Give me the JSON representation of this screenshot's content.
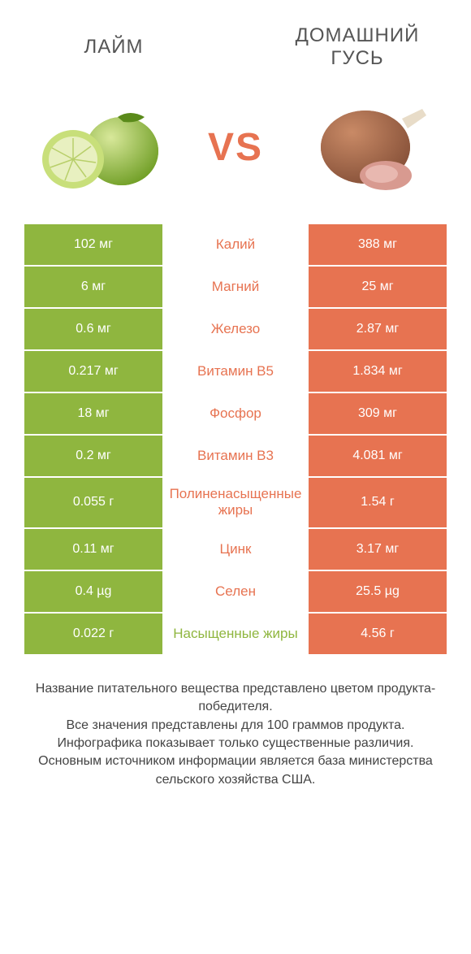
{
  "header": {
    "left_title": "ЛАЙМ",
    "right_title": "ДОМАШНИЙ ГУСЬ",
    "vs_label": "VS"
  },
  "colors": {
    "left_bg": "#8fb63f",
    "right_bg": "#e77351",
    "mid_green": "#8fb63f",
    "mid_orange": "#e77351",
    "vs_color": "#e77351",
    "row_border": "#ffffff",
    "footer_text": "#444444"
  },
  "table": {
    "rows": [
      {
        "left": "102 мг",
        "name": "Калий",
        "right": "388 мг",
        "winner": "right"
      },
      {
        "left": "6 мг",
        "name": "Магний",
        "right": "25 мг",
        "winner": "right"
      },
      {
        "left": "0.6 мг",
        "name": "Железо",
        "right": "2.87 мг",
        "winner": "right"
      },
      {
        "left": "0.217 мг",
        "name": "Витамин B5",
        "right": "1.834 мг",
        "winner": "right"
      },
      {
        "left": "18 мг",
        "name": "Фосфор",
        "right": "309 мг",
        "winner": "right"
      },
      {
        "left": "0.2 мг",
        "name": "Витамин B3",
        "right": "4.081 мг",
        "winner": "right"
      },
      {
        "left": "0.055 г",
        "name": "Полиненасыщенные жиры",
        "right": "1.54 г",
        "winner": "right"
      },
      {
        "left": "0.11 мг",
        "name": "Цинк",
        "right": "3.17 мг",
        "winner": "right"
      },
      {
        "left": "0.4 µg",
        "name": "Селен",
        "right": "25.5 µg",
        "winner": "right"
      },
      {
        "left": "0.022 г",
        "name": "Насыщенные жиры",
        "right": "4.56 г",
        "winner": "left"
      }
    ]
  },
  "footer": {
    "lines": [
      "Название питательного вещества представлено цветом продукта-победителя.",
      "Все значения представлены для 100 граммов продукта.",
      "Инфографика показывает только существенные различия.",
      "Основным источником информации является база министерства сельского хозяйства США."
    ]
  }
}
